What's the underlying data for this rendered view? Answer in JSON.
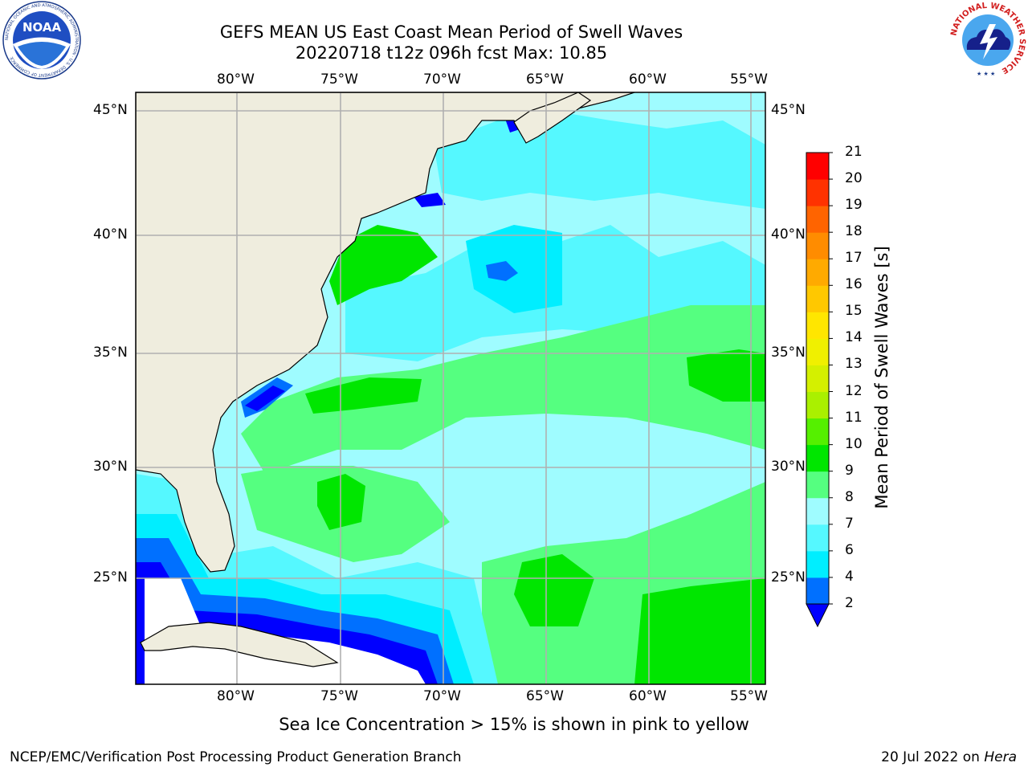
{
  "header": {
    "title_line1": "GEFS MEAN US East Coast Mean Period of Swell Waves",
    "title_line2": "20220718 t12z 096h fcst   Max: 10.85"
  },
  "logos": {
    "left": "NOAA",
    "left_ring": "NATIONAL OCEANIC AND ATMOSPHERIC ADMINISTRATION · U.S. DEPARTMENT OF COMMERCE",
    "right_ring": "NATIONAL WEATHER SERVICE"
  },
  "map": {
    "lon_ticks": [
      "80°W",
      "75°W",
      "70°W",
      "65°W",
      "60°W",
      "55°W"
    ],
    "lat_ticks": [
      "45°N",
      "40°N",
      "35°N",
      "30°N",
      "25°N"
    ],
    "colors": {
      "land": "#efedde",
      "ocean_default": "#9ffcff",
      "grid": "#b0b0b0"
    }
  },
  "colorbar": {
    "title": "Mean Period of Swell Waves [s]",
    "levels": [
      "2",
      "4",
      "6",
      "7",
      "8",
      "9",
      "10",
      "11",
      "12",
      "13",
      "14",
      "15",
      "16",
      "17",
      "18",
      "19",
      "20",
      "21"
    ],
    "colors": [
      "#0070ff",
      "#00eeff",
      "#55f8ff",
      "#9ffcff",
      "#55ff80",
      "#00e600",
      "#55f000",
      "#aaf000",
      "#d4f000",
      "#f0f000",
      "#ffe600",
      "#ffc800",
      "#ffaa00",
      "#ff8c00",
      "#ff6400",
      "#ff3200",
      "#ff0000"
    ],
    "under_color": "#0000ff"
  },
  "caption": "Sea Ice Concentration > 15% is shown in pink to yellow",
  "footer": {
    "left": "NCEP/EMC/Verification Post Processing Product Generation Branch",
    "right_prefix": "20 Jul 2022 on ",
    "right_host": "Hera"
  }
}
